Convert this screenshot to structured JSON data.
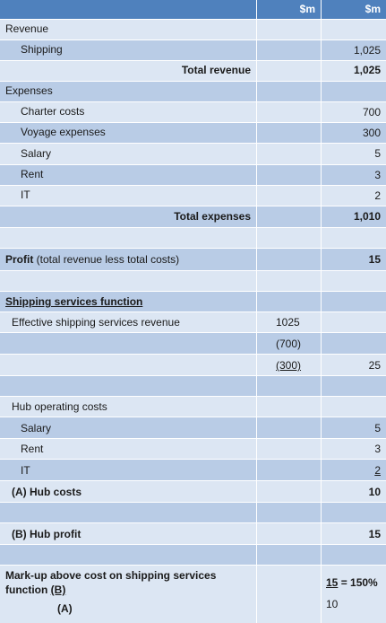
{
  "header": {
    "col1": "",
    "col2": "$m",
    "col3": "$m"
  },
  "revenue": {
    "label": "Revenue",
    "shipping_label": "Shipping",
    "shipping_value": "1,025",
    "total_label": "Total revenue",
    "total_value": "1,025"
  },
  "expenses": {
    "label": "Expenses",
    "items": [
      {
        "label": "Charter costs",
        "value": "700"
      },
      {
        "label": "Voyage expenses",
        "value": "300"
      },
      {
        "label": "Salary",
        "value": "5"
      },
      {
        "label": "Rent",
        "value": "3"
      },
      {
        "label": "IT",
        "value": "2"
      }
    ],
    "total_label": "Total expenses",
    "total_value": "1,010"
  },
  "profit": {
    "label_bold": "Profit",
    "label_rest": " (total revenue less total costs)",
    "value": "15"
  },
  "shipping_services": {
    "heading": "Shipping services function",
    "effective_label": "Effective shipping services revenue",
    "effective_value": "1025",
    "less_charter": "(700)",
    "less_voyage": "(300)",
    "result": "25"
  },
  "hub": {
    "label": "Hub operating costs",
    "items": [
      {
        "label": "Salary",
        "value": "5"
      },
      {
        "label": "Rent",
        "value": "3"
      },
      {
        "label": "IT",
        "value": "2"
      }
    ],
    "hub_costs_label": "(A) Hub costs",
    "hub_costs_value": "10",
    "hub_profit_label": "(B) Hub profit",
    "hub_profit_value": "15"
  },
  "markup": {
    "label_line1": "Mark-up above cost on shipping services",
    "label_line2_prefix": "function  ",
    "label_line2_b": "(B)",
    "label_line3": "(A)",
    "numerator": "15",
    "equals": " = 150%",
    "denominator": "10"
  }
}
